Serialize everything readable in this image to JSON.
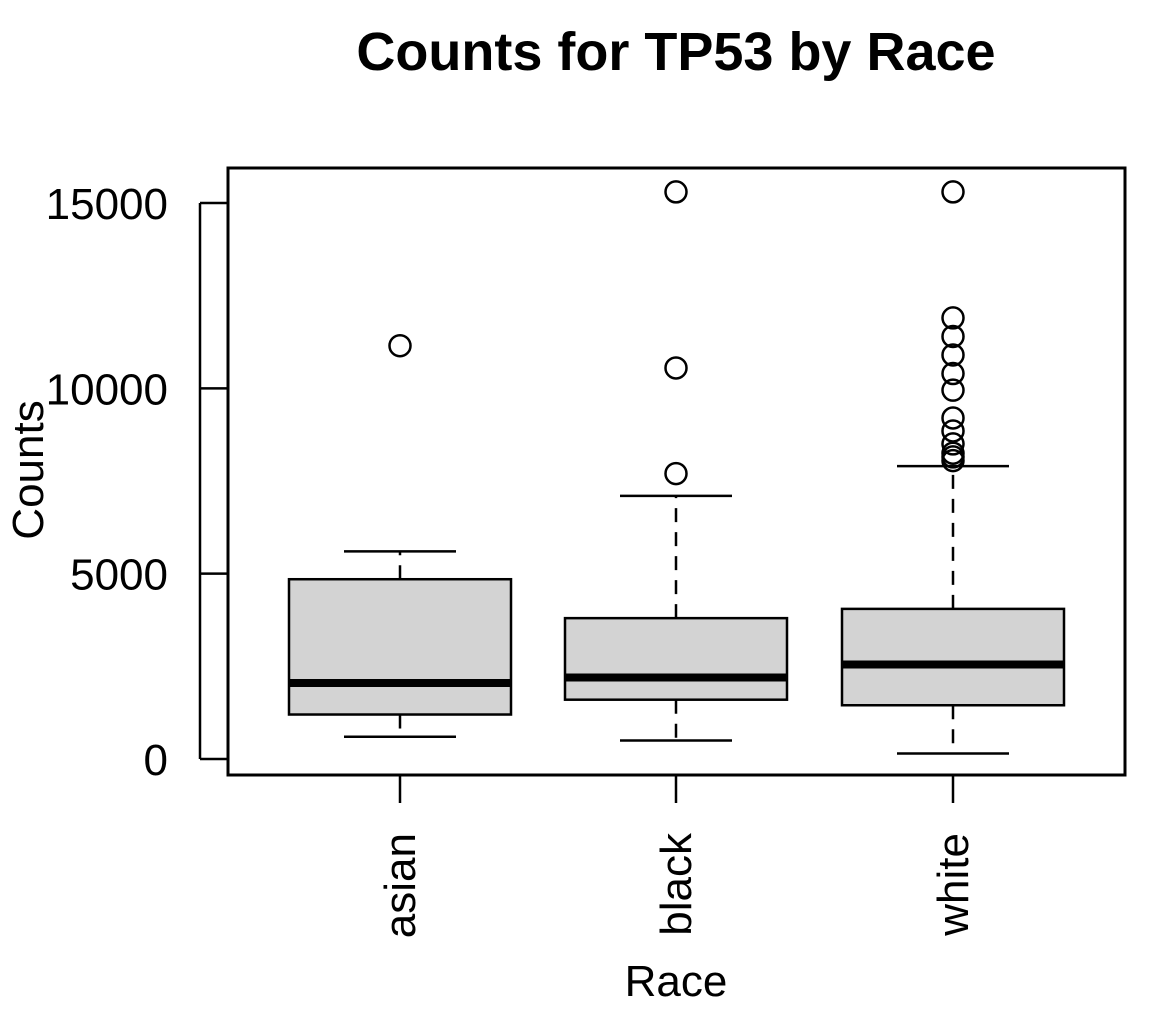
{
  "chart_data": {
    "type": "boxplot",
    "title": "Counts for TP53 by Race",
    "xlabel": "Race",
    "ylabel": "Counts",
    "ylim": [
      -400,
      16000
    ],
    "yticks": [
      0,
      5000,
      10000,
      15000
    ],
    "ytick_labels": [
      "0",
      "5000",
      "10000",
      "15000"
    ],
    "grid": false,
    "legend": "none",
    "box_fill": "#d3d3d3",
    "line_color": "#000000",
    "categories": [
      "asian",
      "black",
      "white"
    ],
    "boxes": [
      {
        "category": "asian",
        "whisker_low": 600,
        "q1": 1200,
        "median": 2050,
        "q3": 4850,
        "whisker_high": 5600,
        "outliers": [
          11150
        ]
      },
      {
        "category": "black",
        "whisker_low": 500,
        "q1": 1600,
        "median": 2200,
        "q3": 3800,
        "whisker_high": 7100,
        "outliers": [
          7700,
          10550,
          15300
        ]
      },
      {
        "category": "white",
        "whisker_low": 150,
        "q1": 1450,
        "median": 2550,
        "q3": 4050,
        "whisker_high": 7900,
        "outliers": [
          8050,
          8150,
          8250,
          8500,
          8850,
          9200,
          9950,
          10400,
          10900,
          11400,
          11900,
          15300
        ]
      }
    ]
  }
}
